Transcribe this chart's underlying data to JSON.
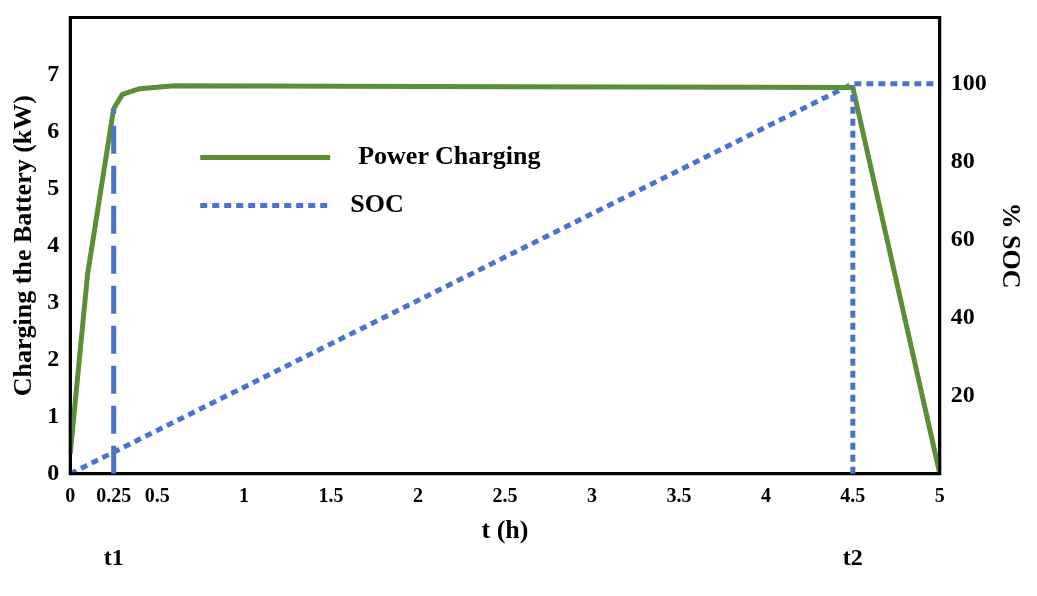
{
  "chart_data": {
    "type": "line",
    "xlabel": "t (h)",
    "ylabel": "Charging the Battery (kW)",
    "y2label": "% SOC",
    "xlim": [
      0,
      5
    ],
    "xticks": [
      0,
      0.25,
      0.5,
      1,
      1.5,
      2,
      2.5,
      3,
      3.5,
      4,
      4.5,
      5
    ],
    "ylim": [
      0,
      8
    ],
    "yticks": [
      0,
      1,
      2,
      3,
      4,
      5,
      6,
      7
    ],
    "y2lim": [
      0,
      117
    ],
    "y2ticks": [
      20,
      40,
      60,
      80,
      100
    ],
    "grid": false,
    "legend": "top left",
    "ref_lines": [
      {
        "axis": "x",
        "value": 0.25,
        "label": "t1",
        "color": "#4a74c9",
        "line_style": "dashed"
      },
      {
        "axis": "x",
        "value": 4.5,
        "label": "t2",
        "color": "#4a74c9",
        "line_style": "dotted"
      }
    ],
    "series": [
      {
        "name": "Power Charging",
        "color": "#5a8f35",
        "line_style": "solid",
        "x": [
          0,
          0.1,
          0.25,
          0.3,
          0.4,
          0.6,
          4.5,
          5
        ],
        "values": [
          0.35,
          3.5,
          6.4,
          6.65,
          6.75,
          6.8,
          6.77,
          0
        ]
      },
      {
        "name": "SOC",
        "color": "#4a74c9",
        "line_style": "dotted",
        "axis": "y2",
        "x": [
          0,
          4.5,
          5
        ],
        "values": [
          0,
          100,
          100
        ]
      }
    ]
  }
}
